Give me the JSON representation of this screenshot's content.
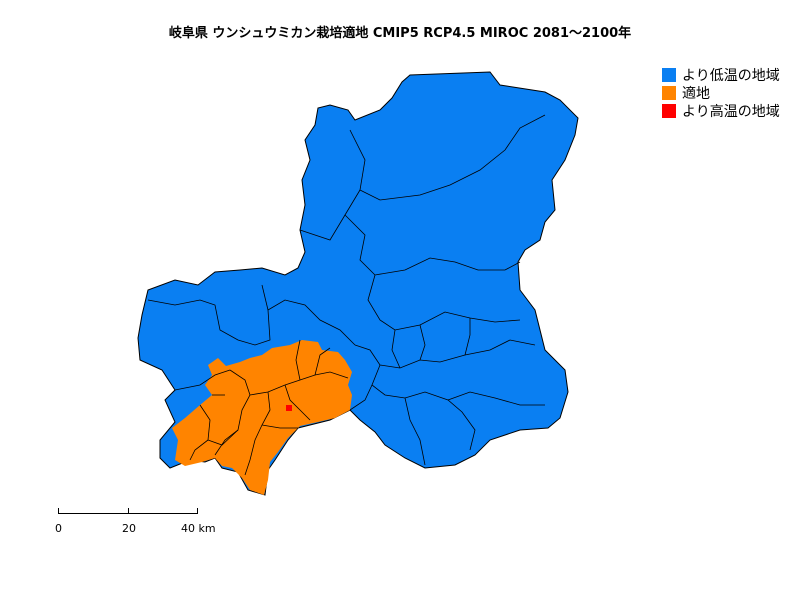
{
  "title": "岐阜県 ウンシュウミカン栽培適地 CMIP5 RCP4.5 MIROC 2081～2100年",
  "legend": [
    {
      "label": "より低温の地域",
      "color": "#0a7ff2"
    },
    {
      "label": "適地",
      "color": "#ff8400"
    },
    {
      "label": "より高温の地域",
      "color": "#ff0000"
    }
  ],
  "scale_bar": {
    "labels": [
      "0",
      "20",
      "40 km"
    ]
  }
}
